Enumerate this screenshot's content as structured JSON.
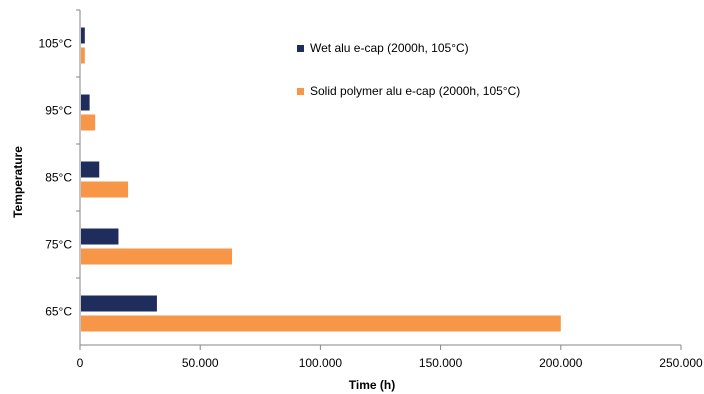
{
  "chart_data": {
    "type": "bar",
    "orientation": "horizontal",
    "categories": [
      "65°C",
      "75°C",
      "85°C",
      "95°C",
      "105°C"
    ],
    "series": [
      {
        "name": "Wet alu e-cap (2000h, 105°C)",
        "color": "#1f2d5c",
        "values": [
          32000,
          16000,
          8000,
          4000,
          2000
        ]
      },
      {
        "name": "Solid polymer alu e-cap (2000h, 105°C)",
        "color": "#f79646",
        "values": [
          200000,
          63245,
          20000,
          6325,
          2000
        ]
      }
    ],
    "xlabel": "Time (h)",
    "ylabel": "Temperature",
    "xlim": [
      0,
      250000
    ],
    "xticks": [
      0,
      50000,
      100000,
      150000,
      200000,
      250000
    ],
    "xtick_labels": [
      "0",
      "50.000",
      "100.000",
      "150.000",
      "200.000",
      "250.000"
    ],
    "grid": false,
    "legend_position": "top-right"
  }
}
